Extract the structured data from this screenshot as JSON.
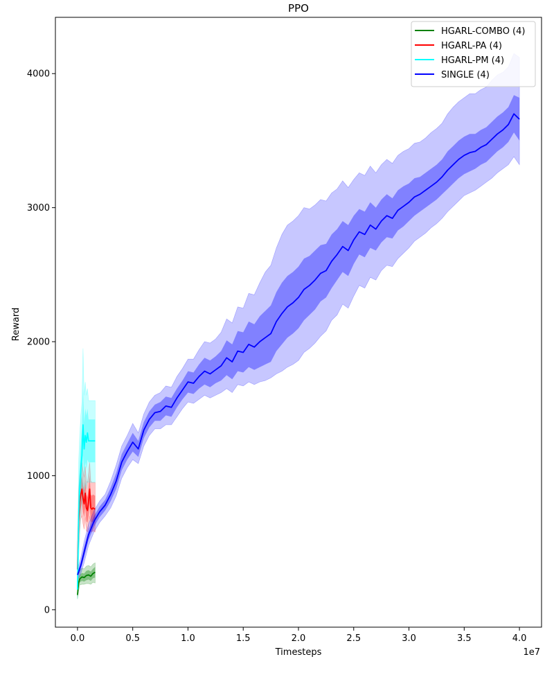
{
  "chart_data": {
    "type": "line",
    "title": "PPO",
    "xlabel": "Timesteps",
    "ylabel": "Reward",
    "x_offset_label": "1e7",
    "xlim": [
      -2000000,
      42000000
    ],
    "ylim": [
      -130,
      4420
    ],
    "x_ticks": [
      0,
      5000000,
      10000000,
      15000000,
      20000000,
      25000000,
      30000000,
      35000000,
      40000000
    ],
    "x_tick_labels": [
      "0.0",
      "0.5",
      "1.0",
      "1.5",
      "2.0",
      "2.5",
      "3.0",
      "3.5",
      "4.0"
    ],
    "y_ticks": [
      0,
      1000,
      2000,
      3000,
      4000
    ],
    "y_tick_labels": [
      "0",
      "1000",
      "2000",
      "3000",
      "4000"
    ],
    "grid": false,
    "legend_position": "top-right",
    "series": [
      {
        "name": "HGARL-COMBO (4)",
        "color": "#008000",
        "x": [
          0,
          100000,
          200000,
          400000,
          600000,
          800000,
          1000000,
          1200000,
          1400000,
          1600000
        ],
        "y": [
          110,
          200,
          230,
          245,
          240,
          255,
          260,
          250,
          270,
          280
        ],
        "std_low": [
          90,
          170,
          205,
          215,
          210,
          220,
          225,
          215,
          235,
          240
        ],
        "std_high": [
          130,
          230,
          260,
          275,
          270,
          290,
          295,
          285,
          305,
          320
        ],
        "minmax_low": [
          80,
          140,
          185,
          190,
          190,
          195,
          195,
          190,
          205,
          200
        ],
        "minmax_high": [
          150,
          260,
          290,
          310,
          305,
          325,
          330,
          320,
          340,
          350
        ]
      },
      {
        "name": "HGARL-PA (4)",
        "color": "#ff0000",
        "x": [
          0,
          100000,
          200000,
          300000,
          400000,
          500000,
          600000,
          700000,
          800000,
          900000,
          1000000,
          1100000,
          1200000,
          1300000,
          1400000,
          1600000
        ],
        "y": [
          300,
          650,
          800,
          860,
          900,
          830,
          790,
          870,
          760,
          740,
          810,
          900,
          760,
          750,
          760,
          750
        ],
        "std_low": [
          200,
          550,
          700,
          760,
          800,
          730,
          690,
          770,
          660,
          650,
          700,
          780,
          660,
          650,
          660,
          650
        ],
        "std_high": [
          400,
          750,
          900,
          960,
          1000,
          930,
          890,
          970,
          860,
          840,
          910,
          1000,
          860,
          850,
          860,
          850
        ],
        "minmax_low": [
          150,
          450,
          600,
          680,
          700,
          640,
          600,
          690,
          590,
          580,
          610,
          700,
          590,
          580,
          590,
          580
        ],
        "minmax_high": [
          500,
          880,
          1000,
          1050,
          1100,
          1040,
          990,
          1070,
          960,
          950,
          1020,
          1100,
          960,
          950,
          950,
          950
        ]
      },
      {
        "name": "HGARL-PM (4)",
        "color": "#00ffff",
        "x": [
          0,
          100000,
          200000,
          300000,
          400000,
          500000,
          600000,
          700000,
          800000,
          900000,
          1000000,
          1200000,
          1400000,
          1600000
        ],
        "y": [
          150,
          700,
          900,
          1050,
          1150,
          1380,
          1200,
          1300,
          1250,
          1320,
          1260,
          1260,
          1260,
          1260
        ],
        "std_low": [
          100,
          500,
          700,
          850,
          950,
          1150,
          1000,
          1100,
          1050,
          1120,
          1100,
          1100,
          1100,
          1100
        ],
        "std_high": [
          200,
          900,
          1100,
          1250,
          1350,
          1650,
          1400,
          1500,
          1450,
          1500,
          1420,
          1420,
          1420,
          1420
        ],
        "minmax_low": [
          80,
          350,
          550,
          700,
          800,
          950,
          850,
          950,
          900,
          960,
          950,
          950,
          950,
          950
        ],
        "minmax_high": [
          250,
          1100,
          1300,
          1450,
          1550,
          1950,
          1600,
          1700,
          1600,
          1650,
          1560,
          1560,
          1560,
          1560
        ]
      },
      {
        "name": "SINGLE (4)",
        "color": "#0000ff",
        "x": [
          0,
          300000,
          600000,
          1000000,
          1500000,
          2000000,
          2500000,
          3000000,
          3500000,
          4000000,
          4500000,
          5000000,
          5500000,
          6000000,
          6500000,
          7000000,
          7500000,
          8000000,
          8500000,
          9000000,
          9500000,
          10000000,
          10500000,
          11000000,
          11500000,
          12000000,
          12500000,
          13000000,
          13500000,
          14000000,
          14500000,
          15000000,
          15500000,
          16000000,
          16500000,
          17000000,
          17500000,
          18000000,
          18500000,
          19000000,
          19500000,
          20000000,
          20500000,
          21000000,
          21500000,
          22000000,
          22500000,
          23000000,
          23500000,
          24000000,
          24500000,
          25000000,
          25500000,
          26000000,
          26500000,
          27000000,
          27500000,
          28000000,
          28500000,
          29000000,
          29500000,
          30000000,
          30500000,
          31000000,
          31500000,
          32000000,
          32500000,
          33000000,
          33500000,
          34000000,
          34500000,
          35000000,
          35500000,
          36000000,
          36500000,
          37000000,
          37500000,
          38000000,
          38500000,
          39000000,
          39500000,
          40000000
        ],
        "y": [
          260,
          330,
          430,
          560,
          660,
          730,
          780,
          860,
          960,
          1100,
          1180,
          1250,
          1200,
          1340,
          1420,
          1470,
          1480,
          1520,
          1510,
          1580,
          1640,
          1700,
          1690,
          1740,
          1780,
          1760,
          1790,
          1820,
          1880,
          1850,
          1930,
          1920,
          1980,
          1960,
          2000,
          2030,
          2060,
          2150,
          2210,
          2260,
          2290,
          2330,
          2390,
          2420,
          2460,
          2510,
          2530,
          2600,
          2650,
          2710,
          2680,
          2760,
          2820,
          2800,
          2870,
          2840,
          2900,
          2940,
          2920,
          2980,
          3010,
          3040,
          3080,
          3100,
          3130,
          3160,
          3190,
          3230,
          3280,
          3320,
          3360,
          3390,
          3410,
          3420,
          3450,
          3470,
          3510,
          3550,
          3580,
          3620,
          3700,
          3660
        ],
        "std_low": [
          240,
          300,
          390,
          520,
          620,
          690,
          740,
          810,
          900,
          1040,
          1120,
          1180,
          1140,
          1280,
          1360,
          1410,
          1410,
          1450,
          1440,
          1510,
          1570,
          1620,
          1610,
          1650,
          1680,
          1660,
          1690,
          1710,
          1750,
          1720,
          1780,
          1770,
          1810,
          1790,
          1810,
          1830,
          1850,
          1930,
          1980,
          2030,
          2060,
          2100,
          2160,
          2200,
          2240,
          2300,
          2330,
          2400,
          2460,
          2520,
          2490,
          2580,
          2650,
          2630,
          2700,
          2680,
          2740,
          2780,
          2770,
          2830,
          2860,
          2900,
          2940,
          2970,
          3000,
          3030,
          3060,
          3100,
          3140,
          3180,
          3220,
          3250,
          3270,
          3290,
          3320,
          3340,
          3380,
          3420,
          3450,
          3490,
          3560,
          3500
        ],
        "std_high": [
          280,
          360,
          470,
          600,
          700,
          770,
          820,
          910,
          1020,
          1160,
          1240,
          1320,
          1260,
          1400,
          1480,
          1530,
          1550,
          1590,
          1580,
          1650,
          1710,
          1780,
          1770,
          1830,
          1880,
          1860,
          1890,
          1930,
          2010,
          1980,
          2080,
          2070,
          2150,
          2130,
          2190,
          2230,
          2270,
          2370,
          2440,
          2490,
          2520,
          2560,
          2620,
          2640,
          2680,
          2720,
          2730,
          2800,
          2840,
          2900,
          2870,
          2940,
          2990,
          2970,
          3040,
          3000,
          3060,
          3100,
          3070,
          3130,
          3160,
          3180,
          3220,
          3230,
          3260,
          3290,
          3320,
          3360,
          3420,
          3460,
          3500,
          3530,
          3550,
          3550,
          3580,
          3600,
          3640,
          3680,
          3710,
          3750,
          3840,
          3820
        ],
        "minmax_low": [
          220,
          270,
          350,
          480,
          580,
          650,
          700,
          760,
          850,
          980,
          1060,
          1120,
          1090,
          1220,
          1300,
          1350,
          1350,
          1380,
          1380,
          1440,
          1500,
          1550,
          1540,
          1570,
          1600,
          1580,
          1600,
          1620,
          1650,
          1620,
          1680,
          1670,
          1700,
          1680,
          1700,
          1710,
          1730,
          1760,
          1780,
          1810,
          1830,
          1860,
          1920,
          1950,
          1990,
          2040,
          2080,
          2160,
          2200,
          2280,
          2250,
          2340,
          2420,
          2400,
          2480,
          2460,
          2530,
          2570,
          2560,
          2620,
          2660,
          2700,
          2750,
          2780,
          2810,
          2850,
          2880,
          2920,
          2970,
          3010,
          3050,
          3090,
          3110,
          3130,
          3160,
          3190,
          3220,
          3260,
          3290,
          3320,
          3380,
          3320
        ],
        "minmax_high": [
          300,
          390,
          510,
          640,
          740,
          810,
          860,
          960,
          1080,
          1220,
          1300,
          1390,
          1320,
          1460,
          1550,
          1600,
          1620,
          1670,
          1660,
          1740,
          1800,
          1870,
          1870,
          1940,
          2000,
          1990,
          2020,
          2070,
          2170,
          2140,
          2260,
          2250,
          2360,
          2350,
          2440,
          2520,
          2570,
          2700,
          2800,
          2870,
          2900,
          2940,
          3000,
          2990,
          3020,
          3060,
          3050,
          3110,
          3140,
          3200,
          3150,
          3210,
          3260,
          3240,
          3310,
          3260,
          3320,
          3360,
          3330,
          3390,
          3420,
          3440,
          3480,
          3490,
          3520,
          3560,
          3590,
          3630,
          3700,
          3750,
          3790,
          3820,
          3850,
          3850,
          3880,
          3900,
          3950,
          3990,
          4010,
          4050,
          4150,
          4120
        ]
      }
    ]
  }
}
